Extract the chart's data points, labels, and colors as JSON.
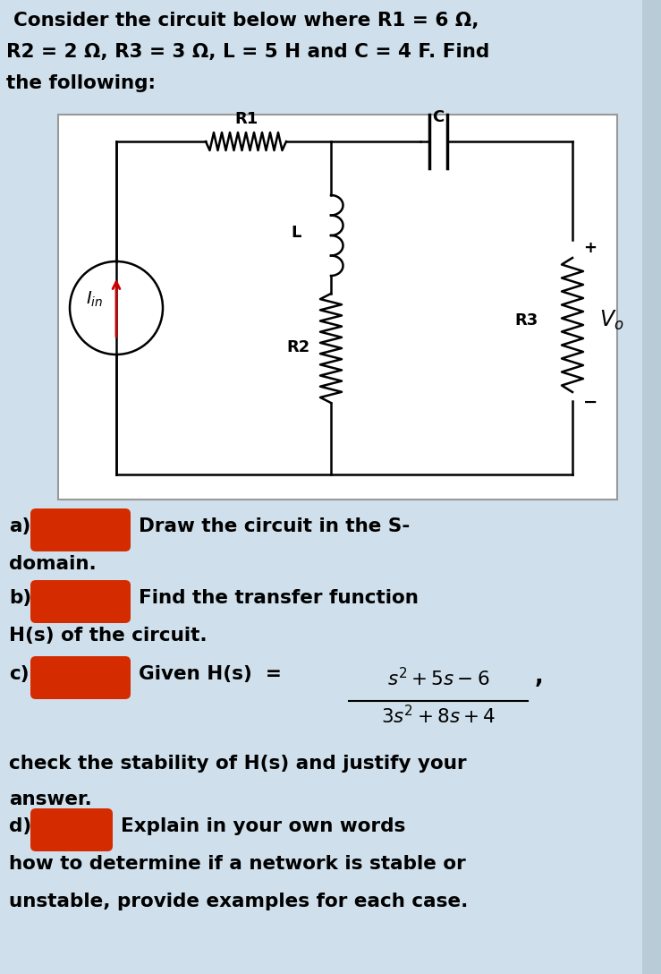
{
  "bg_color": "#cfe0ec",
  "circuit_bg": "#ffffff",
  "title_line1": "Consider the circuit below where R1 = 6 Ω,",
  "title_line2": "R2 = 2 Ω, R3 = 3 Ω, L = 5 H and C = 4 F. Find",
  "title_line3": "the following:",
  "red_blob_color": "#d42b00",
  "text_color": "#000000",
  "font_size_title": 15.5,
  "font_size_body": 15.5,
  "scrollbar_color": "#a0b8c8"
}
